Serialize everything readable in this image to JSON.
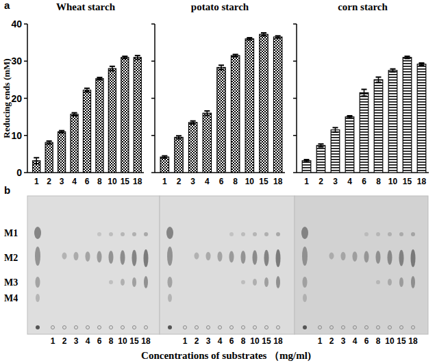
{
  "panel_labels": [
    "a",
    "b"
  ],
  "chart_data": [
    {
      "type": "bar",
      "title": "Wheat starch",
      "y_label": "Reducing ends (mM)",
      "color": "#000000",
      "categories": [
        1,
        2,
        3,
        4,
        6,
        8,
        10,
        15,
        18
      ],
      "values": [
        3.2,
        8.1,
        11,
        15.7,
        22.2,
        25.3,
        28,
        31,
        31
      ],
      "errors": [
        0.8,
        0.4,
        0.3,
        0.4,
        0.5,
        0.3,
        0.6,
        0.3,
        0.5
      ],
      "ylim": [
        0,
        40
      ],
      "yticks": [
        0,
        10,
        20,
        30,
        40
      ],
      "grid": false
    },
    {
      "type": "bar",
      "title": "potato starch",
      "color": "#000000",
      "categories": [
        1,
        2,
        3,
        4,
        6,
        8,
        10,
        15,
        18
      ],
      "values": [
        4.2,
        9.5,
        13.5,
        16,
        28.3,
        31.5,
        36,
        37.2,
        36.5
      ],
      "errors": [
        0.3,
        0.4,
        0.4,
        0.6,
        0.6,
        0.3,
        0.3,
        0.4,
        0.3
      ],
      "ylim": [
        0,
        40
      ],
      "yticks": [
        0,
        10,
        20,
        30,
        40
      ],
      "grid": false,
      "tick_labels": "x"
    },
    {
      "type": "bar",
      "title": "corn starch",
      "color": "#000000",
      "categories": [
        1,
        2,
        3,
        4,
        6,
        8,
        10,
        15,
        18
      ],
      "values": [
        3.2,
        7.3,
        11.5,
        15,
        21.5,
        25,
        27.5,
        31,
        29.2
      ],
      "errors": [
        0.3,
        0.4,
        0.6,
        0.3,
        0.9,
        0.7,
        0.4,
        0.3,
        0.3
      ],
      "ylim": [
        0,
        40
      ],
      "yticks": [
        0,
        10,
        20,
        30,
        40
      ],
      "grid": false,
      "tick_labels": "x"
    }
  ],
  "panel_b": {
    "markers": [
      "M1",
      "M2",
      "M3",
      "M4"
    ],
    "lanes": [
      [
        1,
        2,
        3,
        4,
        6,
        8,
        10,
        15,
        18
      ],
      [
        1,
        2,
        3,
        4,
        6,
        8,
        10,
        15,
        18
      ],
      [
        1,
        2,
        3,
        4,
        6,
        8,
        10,
        15,
        18
      ]
    ],
    "x_label": "Concentrations of substrates （mg/ml)"
  }
}
